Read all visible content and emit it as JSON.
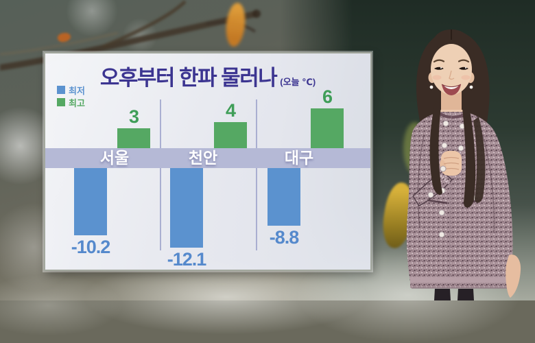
{
  "panel": {
    "title": "오후부터 한파 물러나",
    "unit_note": "(오늘 ℃)"
  },
  "legend": {
    "items": [
      {
        "label": "최저",
        "color": "#5b92cf"
      },
      {
        "label": "최고",
        "color": "#55a863"
      }
    ]
  },
  "chart_data": {
    "type": "bar",
    "subtype": "diverging-grouped",
    "title": "오후부터 한파 물러나",
    "unit": "오늘 ℃",
    "categories": [
      "서울",
      "천안",
      "대구"
    ],
    "series": [
      {
        "name": "최저",
        "color": "#5b92cf",
        "values": [
          -10.2,
          -12.1,
          -8.8
        ]
      },
      {
        "name": "최고",
        "color": "#55a863",
        "values": [
          3,
          4,
          6
        ]
      }
    ],
    "value_labels": {
      "최저": [
        "-10.2",
        "-12.1",
        "-8.8"
      ],
      "최고": [
        "3",
        "4",
        "6"
      ]
    },
    "legend_position": "top-left",
    "grid": false,
    "axis_note": "zero line drawn as lavender band holding city names"
  },
  "colors": {
    "title": "#3c3591",
    "band": "#b5b9d6",
    "divider": "#9aa0c9",
    "min_bar": "#5b92cf",
    "max_bar": "#55a863",
    "min_value_text": "#5589cc",
    "max_value_text": "#3f9e58",
    "city_text": "#ffffff"
  }
}
